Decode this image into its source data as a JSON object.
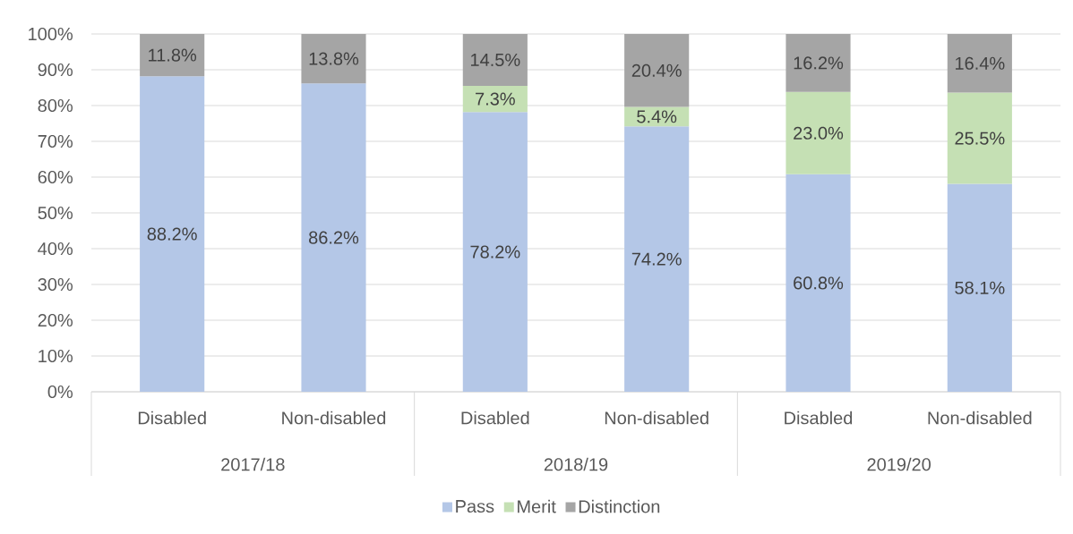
{
  "chart_data": {
    "type": "bar",
    "stacked": true,
    "categories": [
      "Disabled",
      "Non-disabled",
      "Disabled",
      "Non-disabled",
      "Disabled",
      "Non-disabled"
    ],
    "series": [
      {
        "name": "Pass",
        "color": "#b4c7e7",
        "values": [
          88.2,
          86.2,
          78.2,
          74.2,
          60.8,
          58.1
        ],
        "value_labels": [
          "88.2%",
          "86.2%",
          "78.2%",
          "74.2%",
          "60.8%",
          "58.1%"
        ]
      },
      {
        "name": "Merit",
        "color": "#c5e0b4",
        "values": [
          null,
          null,
          7.3,
          5.4,
          23.0,
          25.5
        ],
        "value_labels": [
          null,
          null,
          "7.3%",
          "5.4%",
          "23.0%",
          "25.5%"
        ]
      },
      {
        "name": "Distinction",
        "color": "#a5a5a5",
        "values": [
          11.8,
          13.8,
          14.5,
          20.4,
          16.2,
          16.4
        ],
        "value_labels": [
          "11.8%",
          "13.8%",
          "14.5%",
          "20.4%",
          "16.2%",
          "16.4%"
        ]
      }
    ],
    "ylim": [
      0,
      100
    ],
    "yticks": [
      {
        "value": 0,
        "label": "0%"
      },
      {
        "value": 10,
        "label": "10%"
      },
      {
        "value": 20,
        "label": "20%"
      },
      {
        "value": 30,
        "label": "30%"
      },
      {
        "value": 40,
        "label": "40%"
      },
      {
        "value": 50,
        "label": "50%"
      },
      {
        "value": 60,
        "label": "60%"
      },
      {
        "value": 70,
        "label": "70%"
      },
      {
        "value": 80,
        "label": "80%"
      },
      {
        "value": 90,
        "label": "90%"
      },
      {
        "value": 100,
        "label": "100%"
      }
    ],
    "grid": "y",
    "legend": "bottom",
    "annotations": [
      "2017/18",
      "2018/19",
      "2019/20"
    ]
  }
}
